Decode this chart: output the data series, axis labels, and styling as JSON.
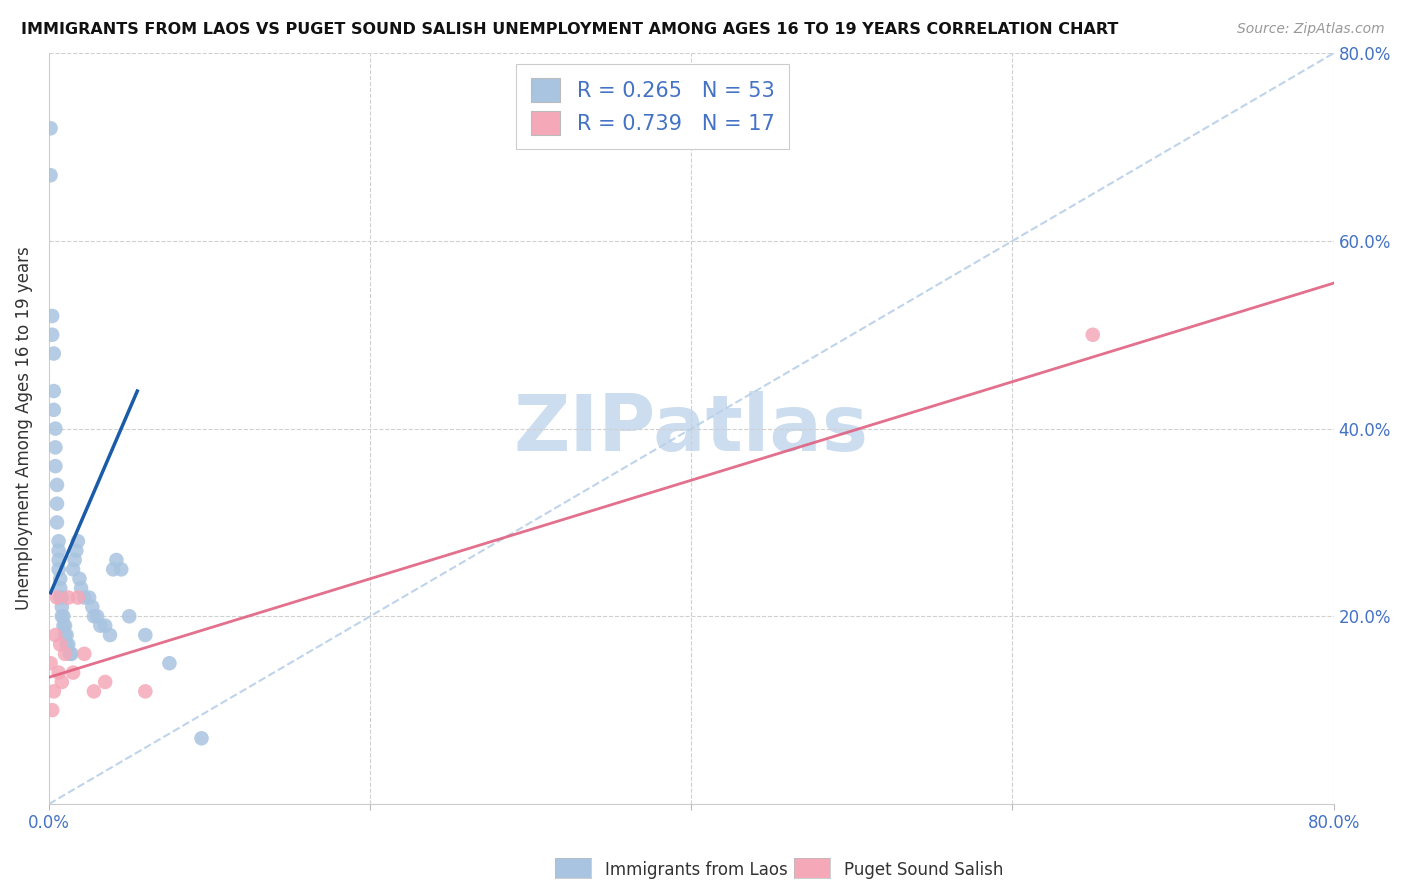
{
  "title": "IMMIGRANTS FROM LAOS VS PUGET SOUND SALISH UNEMPLOYMENT AMONG AGES 16 TO 19 YEARS CORRELATION CHART",
  "source": "Source: ZipAtlas.com",
  "ylabel": "Unemployment Among Ages 16 to 19 years",
  "xlim": [
    0.0,
    0.8
  ],
  "ylim": [
    0.0,
    0.8
  ],
  "blue_R": 0.265,
  "blue_N": 53,
  "pink_R": 0.739,
  "pink_N": 17,
  "blue_color": "#a8c4e0",
  "pink_color": "#f4a8b8",
  "blue_line_color": "#1a5ca8",
  "pink_line_color": "#e06080",
  "diag_line_color": "#b8d0e8",
  "legend_label_blue": "Immigrants from Laos",
  "legend_label_pink": "Puget Sound Salish",
  "blue_scatter_x": [
    0.001,
    0.001,
    0.002,
    0.002,
    0.003,
    0.003,
    0.003,
    0.004,
    0.004,
    0.004,
    0.005,
    0.005,
    0.005,
    0.006,
    0.006,
    0.006,
    0.006,
    0.007,
    0.007,
    0.007,
    0.008,
    0.008,
    0.008,
    0.009,
    0.009,
    0.01,
    0.01,
    0.011,
    0.011,
    0.012,
    0.013,
    0.014,
    0.015,
    0.016,
    0.017,
    0.018,
    0.019,
    0.02,
    0.022,
    0.025,
    0.027,
    0.028,
    0.03,
    0.032,
    0.035,
    0.038,
    0.04,
    0.042,
    0.045,
    0.05,
    0.06,
    0.075,
    0.095
  ],
  "blue_scatter_y": [
    0.72,
    0.67,
    0.52,
    0.5,
    0.48,
    0.44,
    0.42,
    0.4,
    0.38,
    0.36,
    0.34,
    0.32,
    0.3,
    0.28,
    0.27,
    0.26,
    0.25,
    0.24,
    0.23,
    0.22,
    0.22,
    0.21,
    0.2,
    0.2,
    0.19,
    0.19,
    0.18,
    0.18,
    0.17,
    0.17,
    0.16,
    0.16,
    0.25,
    0.26,
    0.27,
    0.28,
    0.24,
    0.23,
    0.22,
    0.22,
    0.21,
    0.2,
    0.2,
    0.19,
    0.19,
    0.18,
    0.25,
    0.26,
    0.25,
    0.2,
    0.18,
    0.15,
    0.07
  ],
  "pink_scatter_x": [
    0.001,
    0.002,
    0.003,
    0.004,
    0.005,
    0.006,
    0.007,
    0.008,
    0.01,
    0.012,
    0.015,
    0.018,
    0.022,
    0.028,
    0.035,
    0.06,
    0.65
  ],
  "pink_scatter_y": [
    0.15,
    0.1,
    0.12,
    0.18,
    0.22,
    0.14,
    0.17,
    0.13,
    0.16,
    0.22,
    0.14,
    0.22,
    0.16,
    0.12,
    0.13,
    0.12,
    0.5
  ],
  "blue_line_x": [
    0.001,
    0.055
  ],
  "blue_line_y": [
    0.225,
    0.44
  ],
  "pink_line_x": [
    0.0,
    0.8
  ],
  "pink_line_y": [
    0.135,
    0.555
  ],
  "diag_line_x": [
    0.0,
    0.8
  ],
  "diag_line_y": [
    0.0,
    0.8
  ],
  "grid_color": "#d0d0d0",
  "watermark_color": "#ccddf0",
  "title_fontsize": 11.5,
  "tick_fontsize": 12,
  "ylabel_fontsize": 12
}
